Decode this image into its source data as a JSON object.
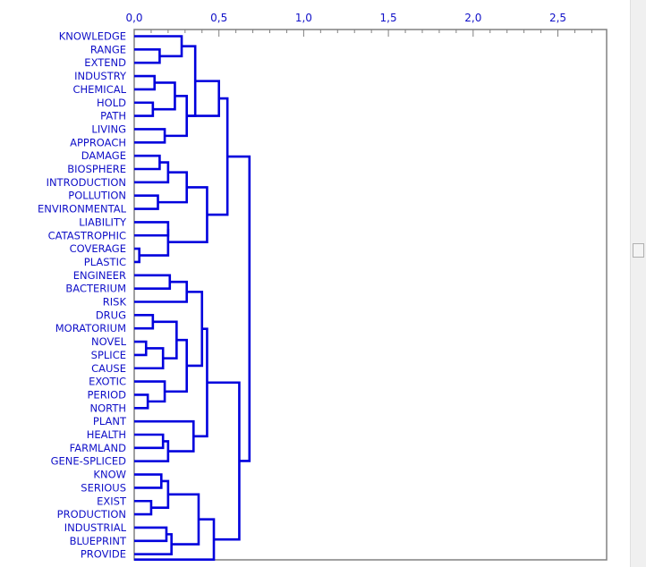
{
  "chart_data": {
    "type": "dendrogram",
    "axis": {
      "ticks": [
        0,
        0.5,
        1.0,
        1.5,
        2.0,
        2.5
      ],
      "tick_labels": [
        "0,0",
        "0,5",
        "1,0",
        "1,5",
        "2,0",
        "2,5"
      ],
      "range": [
        0,
        2.75
      ],
      "minor_step": 0.1
    },
    "leaves": [
      "KNOWLEDGE",
      "RANGE",
      "EXTEND",
      "INDUSTRY",
      "CHEMICAL",
      "HOLD",
      "PATH",
      "LIVING",
      "APPROACH",
      "DAMAGE",
      "BIOSPHERE",
      "INTRODUCTION",
      "POLLUTION",
      "ENVIRONMENTAL",
      "LIABILITY",
      "CATASTROPHIC",
      "COVERAGE",
      "PLASTIC",
      "ENGINEER",
      "BACTERIUM",
      "RISK",
      "DRUG",
      "MORATORIUM",
      "NOVEL",
      "SPLICE",
      "CAUSE",
      "EXOTIC",
      "PERIOD",
      "NORTH",
      "PLANT",
      "HEALTH",
      "FARMLAND",
      "GENE-SPLICED",
      "KNOW",
      "SERIOUS",
      "EXIST",
      "PRODUCTION",
      "INDUSTRIAL",
      "BLUEPRINT",
      "PROVIDE"
    ],
    "merges": [
      {
        "id": "a1",
        "left": "RANGE",
        "right": "EXTEND",
        "height": 0.15
      },
      {
        "id": "a2",
        "left": "KNOWLEDGE",
        "right": "a1",
        "height": 0.28
      },
      {
        "id": "b1",
        "left": "INDUSTRY",
        "right": "CHEMICAL",
        "height": 0.12
      },
      {
        "id": "b2",
        "left": "HOLD",
        "right": "PATH",
        "height": 0.11
      },
      {
        "id": "b3",
        "left": "b1",
        "right": "b2",
        "height": 0.24
      },
      {
        "id": "b4",
        "left": "LIVING",
        "right": "APPROACH",
        "height": 0.18
      },
      {
        "id": "b5",
        "left": "b3",
        "right": "b4",
        "height": 0.31
      },
      {
        "id": "a3",
        "left": "a2",
        "right": "b5",
        "height": 0.36
      },
      {
        "id": "a4",
        "left": "a3",
        "right": "b5x",
        "height": 0.5
      },
      {
        "id": "c1",
        "left": "DAMAGE",
        "right": "BIOSPHERE",
        "height": 0.15
      },
      {
        "id": "c2",
        "left": "c1",
        "right": "INTRODUCTION",
        "height": 0.2
      },
      {
        "id": "c3",
        "left": "POLLUTION",
        "right": "ENVIRONMENTAL",
        "height": 0.14
      },
      {
        "id": "c4",
        "left": "c2",
        "right": "c3",
        "height": 0.31
      },
      {
        "id": "d1",
        "left": "COVERAGE",
        "right": "PLASTIC",
        "height": 0.03
      },
      {
        "id": "d2",
        "left": "LIABILITY",
        "right": "CATASTROPHIC",
        "height": 0.2
      },
      {
        "id": "d3",
        "left": "d2",
        "right": "d1",
        "height": 0.2
      },
      {
        "id": "c5",
        "left": "c4",
        "right": "d3",
        "height": 0.43
      },
      {
        "id": "top1",
        "left": "a4",
        "right": "c5",
        "height": 0.55
      },
      {
        "id": "e1",
        "left": "ENGINEER",
        "right": "BACTERIUM",
        "height": 0.21
      },
      {
        "id": "e2",
        "left": "e1",
        "right": "RISK",
        "height": 0.31
      },
      {
        "id": "f1",
        "left": "DRUG",
        "right": "MORATORIUM",
        "height": 0.11
      },
      {
        "id": "f2",
        "left": "NOVEL",
        "right": "SPLICE",
        "height": 0.07
      },
      {
        "id": "f3",
        "left": "f2",
        "right": "CAUSE",
        "height": 0.17
      },
      {
        "id": "f4",
        "left": "f1",
        "right": "f3",
        "height": 0.25
      },
      {
        "id": "f5",
        "left": "PERIOD",
        "right": "NORTH",
        "height": 0.08
      },
      {
        "id": "f6",
        "left": "EXOTIC",
        "right": "f5",
        "height": 0.18
      },
      {
        "id": "f7",
        "left": "f4",
        "right": "f6",
        "height": 0.31
      },
      {
        "id": "e3",
        "left": "e2",
        "right": "f7",
        "height": 0.4
      },
      {
        "id": "g1",
        "left": "HEALTH",
        "right": "FARMLAND",
        "height": 0.17
      },
      {
        "id": "g2",
        "left": "g1",
        "right": "GENE-SPLICED",
        "height": 0.2
      },
      {
        "id": "g3",
        "left": "PLANT",
        "right": "g2",
        "height": 0.35
      },
      {
        "id": "e4",
        "left": "e3",
        "right": "g3",
        "height": 0.43
      },
      {
        "id": "h1",
        "left": "KNOW",
        "right": "SERIOUS",
        "height": 0.16
      },
      {
        "id": "h2",
        "left": "EXIST",
        "right": "PRODUCTION",
        "height": 0.1
      },
      {
        "id": "h3",
        "left": "h1",
        "right": "h2",
        "height": 0.2
      },
      {
        "id": "h4",
        "left": "INDUSTRIAL",
        "right": "BLUEPRINT",
        "height": 0.19
      },
      {
        "id": "h5",
        "left": "h4",
        "right": "PROVIDE",
        "height": 0.22
      },
      {
        "id": "h6",
        "left": "h3",
        "right": "h5",
        "height": 0.38
      },
      {
        "id": "h7",
        "left": "h6",
        "right": "PROVIDE_TAIL",
        "height": 0.47
      },
      {
        "id": "top2",
        "left": "e4",
        "right": "h7",
        "height": 0.62
      },
      {
        "id": "root",
        "left": "top1",
        "right": "top2",
        "height": 0.68
      }
    ]
  },
  "colors": {
    "line": "#0000dd",
    "text": "#1010c8",
    "frame": "#808080",
    "scrollbar": "#f0f0f0"
  },
  "scrollbar_position": 0.44
}
